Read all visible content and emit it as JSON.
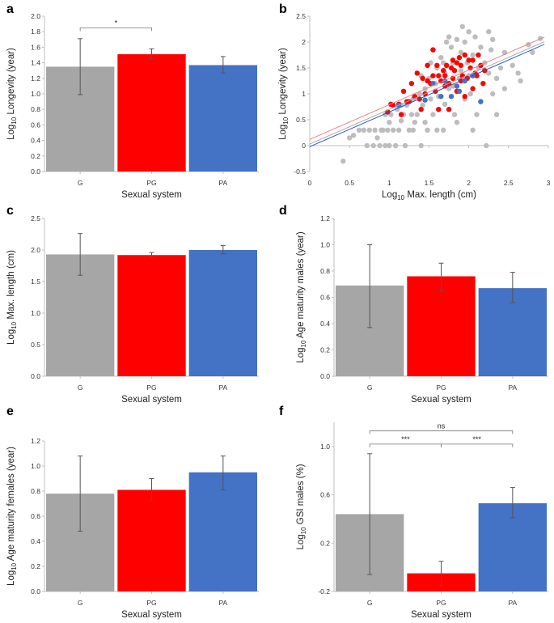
{
  "figure": {
    "panel_letters": [
      "a",
      "b",
      "c",
      "d",
      "e",
      "f"
    ]
  },
  "chart_data": [
    {
      "id": "a",
      "type": "bar",
      "title": "",
      "xlabel": "Sexual system",
      "ylabel_main": "Log",
      "ylabel_sub": "10",
      "ylabel_rest": " Longevity (year)",
      "categories": [
        "G",
        "PG",
        "PA"
      ],
      "values": [
        1.35,
        1.51,
        1.37
      ],
      "err_low": [
        0.99,
        1.45,
        1.27
      ],
      "err_high": [
        1.71,
        1.58,
        1.48
      ],
      "ylim": [
        0,
        2.0
      ],
      "yticks": [
        "0.0",
        "0.2",
        "0.4",
        "0.6",
        "0.8",
        "1.0",
        "1.2",
        "1.4",
        "1.6",
        "1.8",
        "2.0"
      ],
      "tick_color": "#8a8a8a",
      "significance": [
        {
          "from": 0,
          "to": 1,
          "y": 1.85,
          "label": "*"
        }
      ]
    },
    {
      "id": "b",
      "type": "scatter",
      "xlabel_main": "Log",
      "xlabel_sub": "10",
      "xlabel_rest": " Max. length (cm)",
      "ylabel_main": "Log",
      "ylabel_sub": "10",
      "ylabel_rest": " Longevity (year)",
      "xlim": [
        0,
        3
      ],
      "ylim": [
        -0.5,
        2.5
      ],
      "xticks": [
        "0",
        "0.5",
        "1",
        "1.5",
        "2",
        "2.5",
        "3"
      ],
      "yticks": [
        "-0.5",
        "0",
        "0.5",
        "1",
        "1.5",
        "2",
        "2.5"
      ],
      "series": [
        {
          "name": "G",
          "color": "#bdbdbd",
          "points": [
            [
              0.42,
              -0.3
            ],
            [
              0.5,
              0.15
            ],
            [
              0.55,
              0.2
            ],
            [
              0.62,
              0.3
            ],
            [
              0.68,
              0.3
            ],
            [
              0.72,
              0.0
            ],
            [
              0.75,
              0.3
            ],
            [
              0.8,
              0.0
            ],
            [
              0.82,
              0.3
            ],
            [
              0.85,
              0.15
            ],
            [
              0.88,
              0.0
            ],
            [
              0.9,
              0.3
            ],
            [
              0.92,
              0.3
            ],
            [
              0.95,
              0.0
            ],
            [
              0.98,
              0.3
            ],
            [
              1.0,
              0.45
            ],
            [
              1.02,
              0.6
            ],
            [
              1.05,
              0.3
            ],
            [
              1.08,
              0.0
            ],
            [
              1.1,
              0.7
            ],
            [
              1.12,
              0.3
            ],
            [
              1.15,
              0.48
            ],
            [
              1.18,
              0.6
            ],
            [
              1.2,
              0.0
            ],
            [
              1.22,
              0.78
            ],
            [
              1.25,
              0.3
            ],
            [
              1.28,
              0.6
            ],
            [
              1.3,
              0.9
            ],
            [
              1.32,
              0.45
            ],
            [
              1.35,
              0.6
            ],
            [
              1.38,
              1.0
            ],
            [
              1.4,
              0.0
            ],
            [
              1.42,
              0.78
            ],
            [
              1.45,
              1.1
            ],
            [
              1.48,
              0.3
            ],
            [
              1.5,
              1.3
            ],
            [
              1.52,
              0.9
            ],
            [
              1.55,
              0.6
            ],
            [
              1.58,
              1.2
            ],
            [
              1.6,
              1.5
            ],
            [
              1.62,
              0.95
            ],
            [
              1.65,
              1.7
            ],
            [
              1.68,
              0.3
            ],
            [
              1.7,
              1.4
            ],
            [
              1.72,
              2.0
            ],
            [
              1.75,
              1.1
            ],
            [
              1.78,
              1.9
            ],
            [
              1.8,
              1.6
            ],
            [
              1.82,
              0.6
            ],
            [
              1.85,
              2.05
            ],
            [
              1.88,
              1.3
            ],
            [
              1.9,
              1.8
            ],
            [
              1.92,
              2.3
            ],
            [
              1.95,
              0.9
            ],
            [
              1.98,
              1.6
            ],
            [
              2.0,
              2.2
            ],
            [
              2.02,
              1.0
            ],
            [
              2.05,
              1.75
            ],
            [
              2.08,
              2.1
            ],
            [
              2.1,
              0.6
            ],
            [
              2.12,
              1.5
            ],
            [
              2.15,
              1.9
            ],
            [
              2.18,
              1.2
            ],
            [
              2.2,
              1.6
            ],
            [
              2.22,
              0.0
            ],
            [
              2.25,
              1.4
            ],
            [
              2.28,
              1.85
            ],
            [
              2.3,
              1.0
            ],
            [
              2.35,
              1.3
            ],
            [
              2.4,
              1.5
            ],
            [
              2.45,
              1.1
            ],
            [
              2.55,
              1.55
            ],
            [
              2.62,
              1.4
            ],
            [
              2.65,
              1.25
            ],
            [
              2.75,
              1.95
            ],
            [
              2.8,
              1.8
            ],
            [
              2.9,
              2.07
            ],
            [
              1.55,
              1.85
            ],
            [
              1.6,
              0.3
            ],
            [
              1.7,
              0.8
            ],
            [
              1.75,
              2.1
            ],
            [
              1.85,
              0.45
            ],
            [
              1.95,
              2.0
            ],
            [
              2.05,
              0.3
            ],
            [
              2.3,
              2.05
            ],
            [
              1.3,
              0.3
            ],
            [
              1.15,
              0.78
            ],
            [
              1.0,
              0.0
            ],
            [
              1.4,
              1.35
            ],
            [
              1.68,
              1.6
            ],
            [
              1.9,
              1.45
            ],
            [
              2.15,
              0.85
            ],
            [
              2.35,
              0.6
            ],
            [
              2.45,
              1.8
            ],
            [
              0.95,
              0.6
            ],
            [
              1.45,
              0.45
            ],
            [
              1.52,
              1.6
            ],
            [
              1.8,
              1.15
            ],
            [
              2.0,
              1.35
            ],
            [
              2.25,
              2.2
            ]
          ]
        },
        {
          "name": "PG",
          "color": "#ff0000",
          "points": [
            [
              0.98,
              0.65
            ],
            [
              1.02,
              0.8
            ],
            [
              1.05,
              0.78
            ],
            [
              1.12,
              0.8
            ],
            [
              1.15,
              0.6
            ],
            [
              1.18,
              1.05
            ],
            [
              1.22,
              0.85
            ],
            [
              1.25,
              0.85
            ],
            [
              1.28,
              1.2
            ],
            [
              1.32,
              0.95
            ],
            [
              1.35,
              1.4
            ],
            [
              1.38,
              0.9
            ],
            [
              1.42,
              1.3
            ],
            [
              1.45,
              1.0
            ],
            [
              1.48,
              1.55
            ],
            [
              1.52,
              1.2
            ],
            [
              1.55,
              1.35
            ],
            [
              1.58,
              1.05
            ],
            [
              1.6,
              1.55
            ],
            [
              1.62,
              1.35
            ],
            [
              1.65,
              1.25
            ],
            [
              1.68,
              1.45
            ],
            [
              1.7,
              1.35
            ],
            [
              1.72,
              1.55
            ],
            [
              1.75,
              1.2
            ],
            [
              1.78,
              1.5
            ],
            [
              1.8,
              1.3
            ],
            [
              1.82,
              1.45
            ],
            [
              1.85,
              1.6
            ],
            [
              1.88,
              1.7
            ],
            [
              1.9,
              1.55
            ],
            [
              1.92,
              1.35
            ],
            [
              1.95,
              1.75
            ],
            [
              1.98,
              1.3
            ],
            [
              2.0,
              1.65
            ],
            [
              2.02,
              1.5
            ],
            [
              2.05,
              1.65
            ],
            [
              2.08,
              1.4
            ],
            [
              2.12,
              1.75
            ],
            [
              2.15,
              1.55
            ],
            [
              2.18,
              1.2
            ],
            [
              2.2,
              1.45
            ],
            [
              1.55,
              1.85
            ],
            [
              1.7,
              1.15
            ],
            [
              1.85,
              1.05
            ],
            [
              1.62,
              0.7
            ],
            [
              1.75,
              0.7
            ],
            [
              1.95,
              0.95
            ],
            [
              2.05,
              1.1
            ],
            [
              1.4,
              0.7
            ],
            [
              1.48,
              1.25
            ],
            [
              1.8,
              1.65
            ],
            [
              1.9,
              1.25
            ],
            [
              2.1,
              1.35
            ]
          ]
        },
        {
          "name": "PA",
          "color": "#4472c4",
          "points": [
            [
              1.12,
              0.78
            ],
            [
              1.45,
              0.88
            ],
            [
              1.7,
              1.25
            ],
            [
              1.78,
              0.95
            ],
            [
              1.85,
              1.15
            ],
            [
              1.88,
              1.05
            ],
            [
              1.95,
              1.25
            ],
            [
              2.05,
              1.35
            ],
            [
              2.15,
              0.85
            ],
            [
              1.55,
              1.2
            ],
            [
              1.65,
              0.95
            ]
          ]
        }
      ],
      "trendlines": [
        {
          "name": "PG fit",
          "color": "#f08080",
          "intercept": 0.12,
          "slope": 0.67
        },
        {
          "name": "G fit",
          "color": "#a9a9a9",
          "intercept": 0.03,
          "slope": 0.67
        },
        {
          "name": "PA fit",
          "color": "#3355cc",
          "intercept": -0.02,
          "slope": 0.67
        }
      ]
    },
    {
      "id": "c",
      "type": "bar",
      "xlabel": "Sexual system",
      "ylabel_main": "Log",
      "ylabel_sub": "10",
      "ylabel_rest": " Max. length (cm)",
      "categories": [
        "G",
        "PG",
        "PA"
      ],
      "values": [
        1.93,
        1.92,
        2.0
      ],
      "err_low": [
        1.6,
        1.88,
        1.94
      ],
      "err_high": [
        2.26,
        1.96,
        2.07
      ],
      "ylim": [
        0,
        2.5
      ],
      "yticks": [
        "0.0",
        "0.5",
        "1.0",
        "1.5",
        "2.0",
        "2.5"
      ],
      "tick_color": "#333333",
      "significance": []
    },
    {
      "id": "d",
      "type": "bar",
      "xlabel": "Sexual system",
      "ylabel_main": "Log",
      "ylabel_sub": "10",
      "ylabel_rest": " Age maturity males (year)",
      "categories": [
        "G",
        "PG",
        "PA"
      ],
      "values": [
        0.69,
        0.76,
        0.67
      ],
      "err_low": [
        0.37,
        0.65,
        0.56
      ],
      "err_high": [
        1.0,
        0.86,
        0.79
      ],
      "ylim": [
        0,
        1.2
      ],
      "yticks": [
        "0.0",
        "0.2",
        "0.4",
        "0.6",
        "0.8",
        "1.0",
        "1.2"
      ],
      "tick_color": "#333333",
      "significance": []
    },
    {
      "id": "e",
      "type": "bar",
      "xlabel": "Sexual system",
      "ylabel_main": "Log",
      "ylabel_sub": "10",
      "ylabel_rest": " Age maturity females (year)",
      "categories": [
        "G",
        "PG",
        "PA"
      ],
      "values": [
        0.78,
        0.81,
        0.95
      ],
      "err_low": [
        0.48,
        0.72,
        0.81
      ],
      "err_high": [
        1.08,
        0.9,
        1.08
      ],
      "ylim": [
        0,
        1.2
      ],
      "yticks": [
        "0.0",
        "0.2",
        "0.4",
        "0.6",
        "0.8",
        "1.0",
        "1.2"
      ],
      "tick_color": "#333333",
      "significance": []
    },
    {
      "id": "f",
      "type": "bar",
      "xlabel": "Sexual system",
      "ylabel_main": "Log",
      "ylabel_sub": "10",
      "ylabel_rest": " GSI males (%)",
      "categories": [
        "G",
        "PG",
        "PA"
      ],
      "values": [
        0.44,
        -0.05,
        0.53
      ],
      "err_low": [
        -0.06,
        -0.15,
        0.41
      ],
      "err_high": [
        0.94,
        0.05,
        0.66
      ],
      "ylim": [
        -0.2,
        1.2
      ],
      "yticks": [
        "-0.2",
        "0.2",
        "0.6",
        "1.0"
      ],
      "ytick_values": [
        -0.2,
        0.2,
        0.6,
        1.0
      ],
      "tick_color": "#333333",
      "significance": [
        {
          "from": 0,
          "to": 1,
          "y": 1.02,
          "label": "***"
        },
        {
          "from": 1,
          "to": 2,
          "y": 1.02,
          "label": "***"
        },
        {
          "from": 0,
          "to": 2,
          "y": 1.13,
          "label": "ns"
        }
      ]
    }
  ],
  "colors": {
    "G": "#a6a6a6",
    "PG": "#ff0000",
    "PA": "#4472c4"
  }
}
